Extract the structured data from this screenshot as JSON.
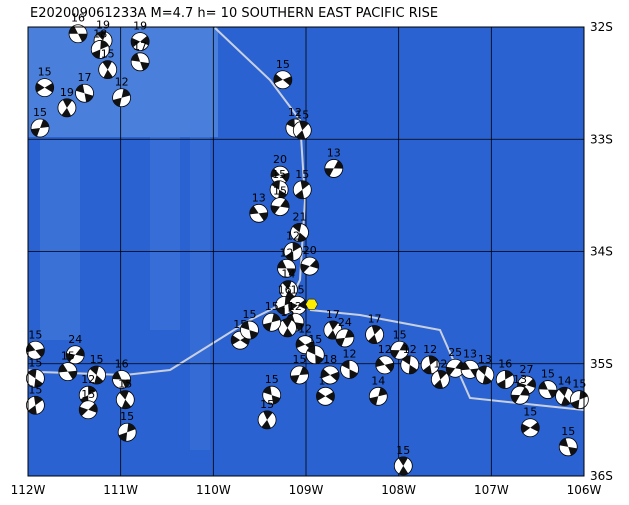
{
  "map": {
    "title": "E202009061233A M=4.7 h= 10 SOUTHERN EAST PACIFIC RISE",
    "lon_range": [
      -112,
      -106
    ],
    "lat_range": [
      -32,
      -36
    ],
    "lon_ticks": [
      {
        "value": -112,
        "label": "112W"
      },
      {
        "value": -111,
        "label": "111W"
      },
      {
        "value": -110,
        "label": "110W"
      },
      {
        "value": -109,
        "label": "109W"
      },
      {
        "value": -108,
        "label": "108W"
      },
      {
        "value": -107,
        "label": "107W"
      },
      {
        "value": -106,
        "label": "106W"
      }
    ],
    "lat_ticks": [
      {
        "value": -32,
        "label": "32S"
      },
      {
        "value": -33,
        "label": "33S"
      },
      {
        "value": -34,
        "label": "34S"
      },
      {
        "value": -35,
        "label": "35S"
      },
      {
        "value": -36,
        "label": "36S"
      }
    ],
    "epicenter": {
      "lon": -108.94,
      "lat": -34.47,
      "color": "#ffee00"
    },
    "events": [
      {
        "lon": -111.46,
        "lat": -32.06,
        "label": "16"
      },
      {
        "lon": -111.19,
        "lat": -32.12,
        "label": "19"
      },
      {
        "lon": -111.22,
        "lat": -32.2,
        "label": "18"
      },
      {
        "lon": -110.79,
        "lat": -32.13,
        "label": "19"
      },
      {
        "lon": -110.79,
        "lat": -32.31,
        "label": "17"
      },
      {
        "lon": -111.14,
        "lat": -32.38,
        "label": "15"
      },
      {
        "lon": -110.99,
        "lat": -32.63,
        "label": "12"
      },
      {
        "lon": -111.82,
        "lat": -32.54,
        "label": "15"
      },
      {
        "lon": -111.39,
        "lat": -32.59,
        "label": "17"
      },
      {
        "lon": -111.58,
        "lat": -32.72,
        "label": "19"
      },
      {
        "lon": -111.87,
        "lat": -32.9,
        "label": "15"
      },
      {
        "lon": -109.25,
        "lat": -32.47,
        "label": "15"
      },
      {
        "lon": -109.12,
        "lat": -32.9,
        "label": "12"
      },
      {
        "lon": -109.04,
        "lat": -32.92,
        "label": "15"
      },
      {
        "lon": -108.7,
        "lat": -33.26,
        "label": "13"
      },
      {
        "lon": -109.28,
        "lat": -33.32,
        "label": "20"
      },
      {
        "lon": -109.29,
        "lat": -33.45,
        "label": "15"
      },
      {
        "lon": -109.04,
        "lat": -33.45,
        "label": "15"
      },
      {
        "lon": -109.28,
        "lat": -33.6,
        "label": "15"
      },
      {
        "lon": -109.51,
        "lat": -33.66,
        "label": "13"
      },
      {
        "lon": -109.07,
        "lat": -33.83,
        "label": "21"
      },
      {
        "lon": -109.14,
        "lat": -34.0,
        "label": "12"
      },
      {
        "lon": -108.96,
        "lat": -34.13,
        "label": "20"
      },
      {
        "lon": -109.21,
        "lat": -34.15,
        "label": "12"
      },
      {
        "lon": -109.19,
        "lat": -34.34,
        "label": "14"
      },
      {
        "lon": -109.23,
        "lat": -34.48,
        "label": "16"
      },
      {
        "lon": -109.09,
        "lat": -34.48,
        "label": "15"
      },
      {
        "lon": -109.12,
        "lat": -34.63,
        "label": "12"
      },
      {
        "lon": -109.2,
        "lat": -34.68,
        "label": "15"
      },
      {
        "lon": -109.37,
        "lat": -34.63,
        "label": "15"
      },
      {
        "lon": -109.71,
        "lat": -34.79,
        "label": "15"
      },
      {
        "lon": -109.61,
        "lat": -34.7,
        "label": "15"
      },
      {
        "lon": -108.71,
        "lat": -34.7,
        "label": "17"
      },
      {
        "lon": -108.58,
        "lat": -34.77,
        "label": "24"
      },
      {
        "lon": -109.01,
        "lat": -34.83,
        "label": "12"
      },
      {
        "lon": -108.9,
        "lat": -34.92,
        "label": "15"
      },
      {
        "lon": -108.26,
        "lat": -34.74,
        "label": "17"
      },
      {
        "lon": -107.99,
        "lat": -34.88,
        "label": "15"
      },
      {
        "lon": -108.15,
        "lat": -35.01,
        "label": "12"
      },
      {
        "lon": -107.88,
        "lat": -35.01,
        "label": "12"
      },
      {
        "lon": -107.66,
        "lat": -35.01,
        "label": "12"
      },
      {
        "lon": -107.39,
        "lat": -35.04,
        "label": "25"
      },
      {
        "lon": -107.23,
        "lat": -35.05,
        "label": "13"
      },
      {
        "lon": -107.07,
        "lat": -35.1,
        "label": "13"
      },
      {
        "lon": -106.85,
        "lat": -35.14,
        "label": "16"
      },
      {
        "lon": -106.62,
        "lat": -35.19,
        "label": "27"
      },
      {
        "lon": -106.39,
        "lat": -35.23,
        "label": "15"
      },
      {
        "lon": -106.21,
        "lat": -35.29,
        "label": "14"
      },
      {
        "lon": -106.05,
        "lat": -35.32,
        "label": "15"
      },
      {
        "lon": -106.58,
        "lat": -35.57,
        "label": "15"
      },
      {
        "lon": -106.17,
        "lat": -35.74,
        "label": "15"
      },
      {
        "lon": -107.95,
        "lat": -35.91,
        "label": "15"
      },
      {
        "lon": -108.22,
        "lat": -35.29,
        "label": "14"
      },
      {
        "lon": -108.79,
        "lat": -35.29,
        "label": "13"
      },
      {
        "lon": -109.37,
        "lat": -35.28,
        "label": "15"
      },
      {
        "lon": -109.42,
        "lat": -35.5,
        "label": "15"
      },
      {
        "lon": -109.07,
        "lat": -35.1,
        "label": "15"
      },
      {
        "lon": -108.74,
        "lat": -35.1,
        "label": "18"
      },
      {
        "lon": -108.53,
        "lat": -35.05,
        "label": "12"
      },
      {
        "lon": -107.55,
        "lat": -35.14,
        "label": "12"
      },
      {
        "lon": -106.69,
        "lat": -35.28,
        "label": "13"
      },
      {
        "lon": -111.92,
        "lat": -34.88,
        "label": "15"
      },
      {
        "lon": -111.92,
        "lat": -35.13,
        "label": "15"
      },
      {
        "lon": -111.92,
        "lat": -35.37,
        "label": "15"
      },
      {
        "lon": -111.49,
        "lat": -34.92,
        "label": "24"
      },
      {
        "lon": -111.57,
        "lat": -35.07,
        "label": "15"
      },
      {
        "lon": -111.26,
        "lat": -35.1,
        "label": "15"
      },
      {
        "lon": -111.35,
        "lat": -35.28,
        "label": "12"
      },
      {
        "lon": -111.35,
        "lat": -35.41,
        "label": "15"
      },
      {
        "lon": -110.99,
        "lat": -35.14,
        "label": "16"
      },
      {
        "lon": -110.95,
        "lat": -35.32,
        "label": "15"
      },
      {
        "lon": -110.93,
        "lat": -35.61,
        "label": "15"
      }
    ]
  }
}
